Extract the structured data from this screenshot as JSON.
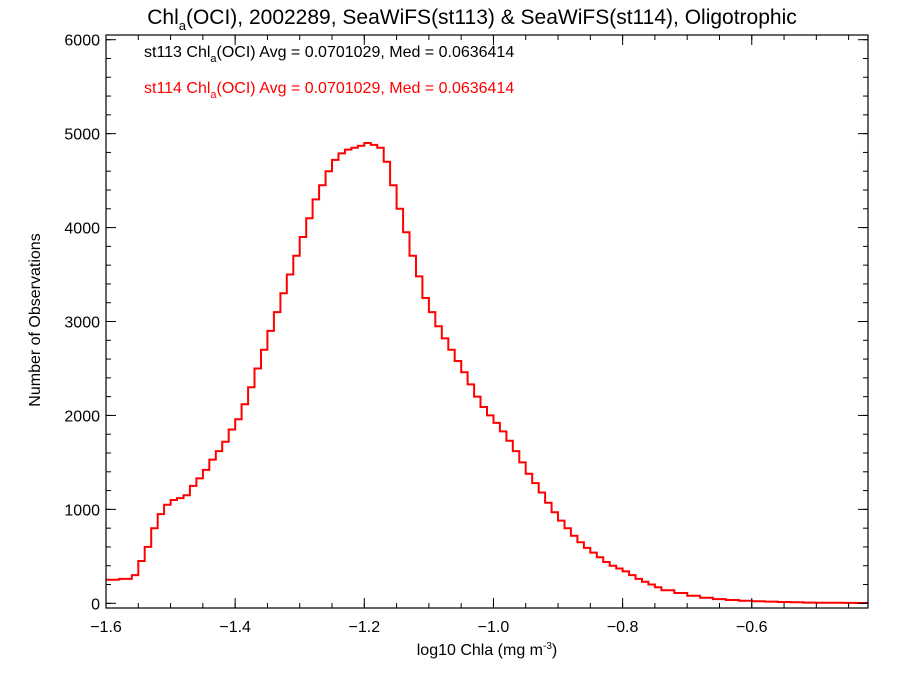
{
  "chart_data": {
    "type": "line",
    "title": {
      "pre": "Chl",
      "sub": "a",
      "post": "(OCI), 2002289, SeaWiFS(st113) & SeaWiFS(st114), Oligotrophic"
    },
    "xlabel": {
      "pre": "log10 Chla (mg m",
      "sup": "-3",
      "post": ")"
    },
    "ylabel": "Number of Observations",
    "xlim": [
      -1.6,
      -0.42
    ],
    "ylim": [
      -50,
      6050
    ],
    "x_ticks": [
      -1.6,
      -1.4,
      -1.2,
      -1.0,
      -0.8,
      -0.6
    ],
    "x_tick_labels": [
      "−1.6",
      "−1.4",
      "−1.2",
      "−1.0",
      "−0.8",
      "−0.6"
    ],
    "y_ticks": [
      0,
      1000,
      2000,
      3000,
      4000,
      5000,
      6000
    ],
    "y_tick_labels": [
      "0",
      "1000",
      "2000",
      "3000",
      "4000",
      "5000",
      "6000"
    ],
    "grid": false,
    "legend": [
      {
        "pre": "st113 Chl",
        "sub": "a",
        "post": "(OCI) Avg = 0.0701029, Med = 0.0636414",
        "color": "#000000"
      },
      {
        "pre": "st114 Chl",
        "sub": "a",
        "post": "(OCI) Avg = 0.0701029, Med = 0.0636414",
        "color": "#ff0000"
      }
    ],
    "series": [
      {
        "color": "#ff0000",
        "style": "step",
        "x": [
          -1.6,
          -1.58,
          -1.56,
          -1.55,
          -1.54,
          -1.53,
          -1.52,
          -1.51,
          -1.5,
          -1.49,
          -1.48,
          -1.47,
          -1.46,
          -1.45,
          -1.44,
          -1.43,
          -1.42,
          -1.41,
          -1.4,
          -1.39,
          -1.38,
          -1.37,
          -1.36,
          -1.35,
          -1.34,
          -1.33,
          -1.32,
          -1.31,
          -1.3,
          -1.29,
          -1.28,
          -1.27,
          -1.26,
          -1.25,
          -1.24,
          -1.23,
          -1.22,
          -1.21,
          -1.2,
          -1.19,
          -1.18,
          -1.17,
          -1.16,
          -1.15,
          -1.14,
          -1.13,
          -1.12,
          -1.11,
          -1.1,
          -1.09,
          -1.08,
          -1.07,
          -1.06,
          -1.05,
          -1.04,
          -1.03,
          -1.02,
          -1.01,
          -1.0,
          -0.99,
          -0.98,
          -0.97,
          -0.96,
          -0.95,
          -0.94,
          -0.93,
          -0.92,
          -0.91,
          -0.9,
          -0.89,
          -0.88,
          -0.87,
          -0.86,
          -0.85,
          -0.84,
          -0.83,
          -0.82,
          -0.81,
          -0.8,
          -0.79,
          -0.78,
          -0.77,
          -0.76,
          -0.75,
          -0.74,
          -0.72,
          -0.7,
          -0.68,
          -0.66,
          -0.64,
          -0.62,
          -0.6,
          -0.58,
          -0.56,
          -0.54,
          -0.52,
          -0.5,
          -0.48,
          -0.46,
          -0.44,
          -0.42
        ],
        "y": [
          250,
          260,
          300,
          450,
          600,
          800,
          950,
          1050,
          1100,
          1120,
          1150,
          1250,
          1330,
          1420,
          1530,
          1620,
          1720,
          1850,
          1960,
          2120,
          2300,
          2500,
          2700,
          2900,
          3100,
          3300,
          3500,
          3700,
          3900,
          4100,
          4300,
          4450,
          4600,
          4720,
          4790,
          4830,
          4850,
          4870,
          4900,
          4880,
          4850,
          4700,
          4450,
          4200,
          3950,
          3700,
          3480,
          3250,
          3100,
          2950,
          2820,
          2700,
          2580,
          2460,
          2330,
          2200,
          2090,
          2000,
          1920,
          1830,
          1730,
          1620,
          1500,
          1380,
          1280,
          1180,
          1070,
          970,
          880,
          800,
          720,
          650,
          590,
          540,
          490,
          440,
          400,
          370,
          340,
          300,
          260,
          230,
          200,
          170,
          140,
          110,
          80,
          60,
          45,
          35,
          28,
          22,
          18,
          14,
          11,
          8,
          6,
          5,
          4,
          3,
          3
        ]
      }
    ]
  }
}
